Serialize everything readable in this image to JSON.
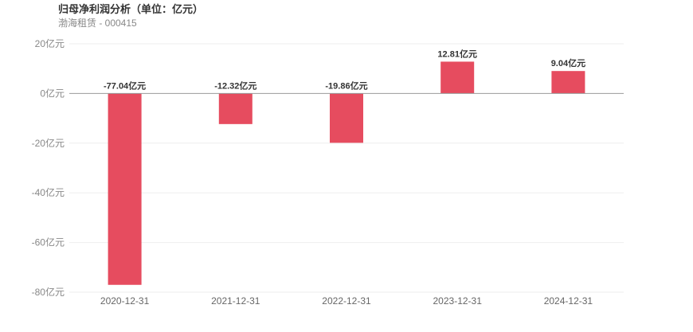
{
  "title": "归母净利润分析（单位：亿元）",
  "subtitle": "渤海租赁 - 000415",
  "colors": {
    "bar": "#e64c5f",
    "grid": "#eeeeee",
    "zero_line": "#999999"
  },
  "chart_data": {
    "type": "bar",
    "title": "归母净利润分析（单位：亿元）",
    "categories": [
      "2020-12-31",
      "2021-12-31",
      "2022-12-31",
      "2023-12-31",
      "2024-12-31"
    ],
    "values": [
      -77.04,
      -12.32,
      -19.86,
      12.81,
      9.04
    ],
    "value_labels": [
      "-77.04亿元",
      "-12.32亿元",
      "-19.86亿元",
      "12.81亿元",
      "9.04亿元"
    ],
    "yticks": [
      20,
      0,
      -20,
      -40,
      -60,
      -80
    ],
    "ytick_labels": [
      "20亿元",
      "0亿元",
      "-20亿元",
      "-40亿元",
      "-60亿元",
      "-80亿元"
    ],
    "ylim": [
      -80,
      20
    ],
    "grid": true,
    "legend": "none",
    "xlabel": "",
    "ylabel": ""
  }
}
